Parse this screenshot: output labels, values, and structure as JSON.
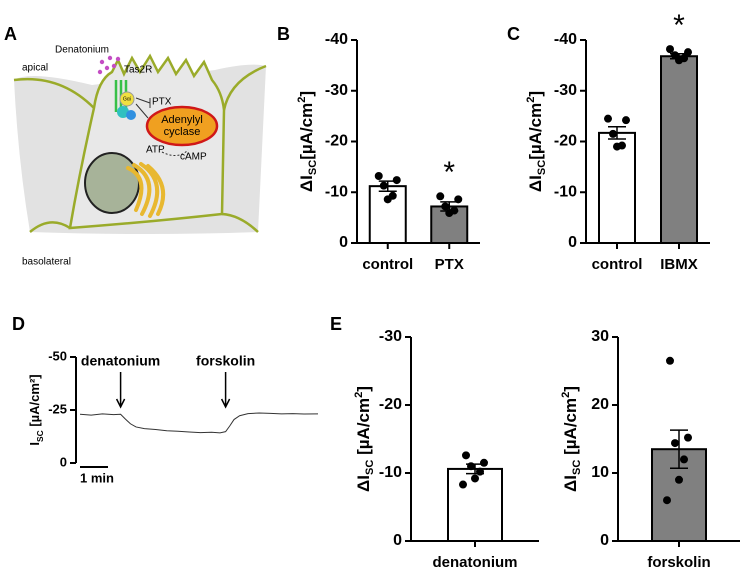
{
  "diagram": {
    "panel": "A",
    "denatonium": "Denatonium",
    "receptor": "Tas2R",
    "apical": "apical",
    "g_protein": "Gαi",
    "ptx": "PTX",
    "enzyme": [
      "Adenylyl",
      "cyclase"
    ],
    "atp": "ATP",
    "camp": "cAMP",
    "basolateral": "basolateral"
  },
  "chart_data": [
    {
      "type": "bar",
      "panel": "B",
      "categories": [
        "control",
        "PTX"
      ],
      "values": [
        -11.2,
        -7.2
      ],
      "errors": [
        1.0,
        0.9
      ],
      "colors": [
        "#ffffff",
        "#808080"
      ],
      "points": [
        [
          -13.2,
          -12.4,
          -11.3,
          -9.3,
          -8.6
        ],
        [
          -9.2,
          -8.6,
          -7.2,
          -6.4,
          -5.9
        ]
      ],
      "ylim": [
        0,
        -40
      ],
      "yticks": [
        0,
        -10,
        -20,
        -30,
        -40
      ],
      "ylabel": {
        "main": "ΔI",
        "sub": "SC",
        "unit": "[µA/cm",
        "sup": "2",
        "end": "]"
      },
      "annotations": [
        {
          "category": "PTX",
          "text": "*"
        }
      ]
    },
    {
      "type": "bar",
      "panel": "C",
      "categories": [
        "control",
        "IBMX"
      ],
      "values": [
        -21.7,
        -36.8
      ],
      "errors": [
        1.2,
        0.5
      ],
      "colors": [
        "#ffffff",
        "#808080"
      ],
      "points": [
        [
          -24.5,
          -24.2,
          -21.5,
          -19.2,
          -19.0
        ],
        [
          -38.2,
          -37.6,
          -37.0,
          -36.4,
          -36.0
        ]
      ],
      "ylim": [
        0,
        -40
      ],
      "yticks": [
        0,
        -10,
        -20,
        -30,
        -40
      ],
      "ylabel": {
        "main": "ΔI",
        "sub": "SC",
        "unit": "[µA/cm",
        "sup": "2",
        "end": "]"
      },
      "annotations": [
        {
          "category": "IBMX",
          "text": "*"
        }
      ]
    },
    {
      "type": "line",
      "panel": "D",
      "color": "#333333",
      "x": [
        0,
        0.4,
        0.8,
        1.2,
        1.45,
        1.6,
        1.8,
        2.0,
        2.3,
        2.7,
        3.1,
        3.5,
        3.9,
        4.3,
        4.7,
        5.0,
        5.2,
        5.35,
        5.5,
        5.7,
        6.0,
        6.4,
        6.8,
        7.2,
        7.6,
        8.0,
        8.5
      ],
      "values": [
        -23,
        -22.6,
        -23.2,
        -22.8,
        -23,
        -21,
        -18.5,
        -17,
        -16.2,
        -15.8,
        -15.2,
        -15,
        -14.6,
        -14.3,
        -14.5,
        -14.2,
        -14.8,
        -17.5,
        -20.5,
        -22.3,
        -23.3,
        -23.6,
        -23.4,
        -23.2,
        -23.3,
        -23.1,
        -23.2
      ],
      "xlim": [
        0,
        8.5
      ],
      "ylim": [
        0,
        -50
      ],
      "yticks": [
        0,
        -25,
        -50
      ],
      "ylabel": {
        "main": "I",
        "sub": "SC",
        "unit": " [µA/cm²]"
      },
      "annotations": [
        {
          "text": "denatonium",
          "x": 1.45
        },
        {
          "text": "forskolin",
          "x": 5.2
        }
      ],
      "scale_bar": {
        "value": 1,
        "label": "1 min"
      }
    },
    {
      "type": "bar",
      "panel": "E",
      "categories": [
        "denatonium"
      ],
      "values": [
        -10.6
      ],
      "errors": [
        0.7
      ],
      "colors": [
        "#ffffff"
      ],
      "points": [
        [
          -12.6,
          -11.5,
          -11.0,
          -10.2,
          -9.2,
          -8.3
        ]
      ],
      "ylim": [
        0,
        -30
      ],
      "yticks": [
        0,
        -10,
        -20,
        -30
      ],
      "ylabel": {
        "main": "ΔI",
        "sub": "SC",
        "unit": " [µA/cm",
        "sup": "2",
        "end": "]"
      }
    },
    {
      "type": "bar",
      "categories": [
        "forskolin"
      ],
      "values": [
        13.5
      ],
      "errors": [
        2.8
      ],
      "colors": [
        "#808080"
      ],
      "points": [
        [
          26.5,
          15.2,
          14.4,
          12.0,
          9.0,
          6.0
        ]
      ],
      "ylim": [
        0,
        30
      ],
      "yticks": [
        0,
        10,
        20,
        30
      ],
      "ylabel": {
        "main": "ΔI",
        "sub": "SC",
        "unit": " [µA/cm",
        "sup": "2",
        "end": "]"
      }
    }
  ]
}
